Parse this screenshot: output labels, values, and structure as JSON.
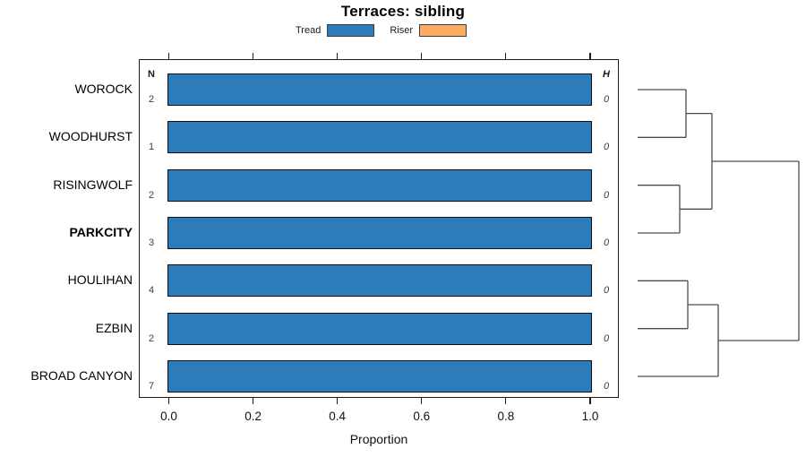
{
  "title": "Terraces: sibling",
  "legend": {
    "items": [
      {
        "label": "Tread",
        "color": "#2c7cb9"
      },
      {
        "label": "Riser",
        "color": "#fcab63"
      }
    ]
  },
  "table": {
    "n_header": "N",
    "h_header": "H"
  },
  "rows": [
    {
      "label": "WOROCK",
      "n": "2",
      "h": "0",
      "tread": 1.0,
      "riser": 0,
      "bold": false
    },
    {
      "label": "WOODHURST",
      "n": "1",
      "h": "0",
      "tread": 1.0,
      "riser": 0,
      "bold": false
    },
    {
      "label": "RISINGWOLF",
      "n": "2",
      "h": "0",
      "tread": 1.0,
      "riser": 0,
      "bold": false
    },
    {
      "label": "PARKCITY",
      "n": "3",
      "h": "0",
      "tread": 1.0,
      "riser": 0,
      "bold": true
    },
    {
      "label": "HOULIHAN",
      "n": "4",
      "h": "0",
      "tread": 1.0,
      "riser": 0,
      "bold": false
    },
    {
      "label": "EZBIN",
      "n": "2",
      "h": "0",
      "tread": 1.0,
      "riser": 0,
      "bold": false
    },
    {
      "label": "BROAD CANYON",
      "n": "7",
      "h": "0",
      "tread": 1.0,
      "riser": 0,
      "bold": false
    }
  ],
  "axis": {
    "label": "Proportion",
    "tick_labels": [
      "0.0",
      "0.2",
      "0.4",
      "0.6",
      "0.8",
      "1.0"
    ],
    "tick_values": [
      0,
      0.2,
      0.4,
      0.6,
      0.8,
      1.0
    ],
    "min": 0,
    "max": 1
  },
  "dendrogram": {
    "description": "hierarchical clustering tree, leaves aligned to bar rows top-to-bottom",
    "merges": [
      {
        "join": [
          "WOROCK",
          "WOODHURST"
        ]
      },
      {
        "join": [
          "RISINGWOLF",
          "PARKCITY"
        ]
      },
      {
        "join": [
          "WOROCK+WOODHURST",
          "RISINGWOLF+PARKCITY"
        ]
      },
      {
        "join": [
          "HOULIHAN",
          "EZBIN"
        ]
      },
      {
        "join": [
          "HOULIHAN+EZBIN",
          "BROAD CANYON"
        ]
      },
      {
        "join": [
          "top-cluster",
          "bottom-cluster"
        ]
      }
    ],
    "segments": [
      [
        712,
        100.0,
        766,
        100.0
      ],
      [
        712,
        153.3,
        766,
        153.3
      ],
      [
        766,
        100.0,
        766,
        153.3
      ],
      [
        766,
        126.6,
        795,
        126.6
      ],
      [
        712,
        206.7,
        759,
        206.7
      ],
      [
        712,
        260.0,
        759,
        260.0
      ],
      [
        759,
        206.7,
        759,
        260.0
      ],
      [
        759,
        233.3,
        795,
        233.3
      ],
      [
        795,
        126.6,
        795,
        233.3
      ],
      [
        795,
        180.0,
        892,
        180.0
      ],
      [
        712,
        313.3,
        768,
        313.3
      ],
      [
        712,
        366.7,
        768,
        366.7
      ],
      [
        768,
        313.3,
        768,
        366.7
      ],
      [
        768,
        340.0,
        802,
        340.0
      ],
      [
        712,
        420.0,
        802,
        420.0
      ],
      [
        802,
        340.0,
        802,
        420.0
      ],
      [
        802,
        380.0,
        892,
        380.0
      ],
      [
        892,
        180.0,
        892,
        380.0
      ]
    ]
  },
  "chart_data": {
    "type": "bar",
    "orientation": "horizontal",
    "title": "Terraces: sibling",
    "categories": [
      "WOROCK",
      "WOODHURST",
      "RISINGWOLF",
      "PARKCITY",
      "HOULIHAN",
      "EZBIN",
      "BROAD CANYON"
    ],
    "series": [
      {
        "name": "Tread",
        "color": "#2c7cb9",
        "values": [
          1.0,
          1.0,
          1.0,
          1.0,
          1.0,
          1.0,
          1.0
        ]
      },
      {
        "name": "Riser",
        "color": "#fcab63",
        "values": [
          0,
          0,
          0,
          0,
          0,
          0,
          0
        ]
      }
    ],
    "n_counts": [
      2,
      1,
      2,
      3,
      4,
      2,
      7
    ],
    "h_values": [
      0,
      0,
      0,
      0,
      0,
      0,
      0
    ],
    "xlabel": "Proportion",
    "ylabel": "",
    "xlim": [
      0,
      1
    ],
    "xticks": [
      0,
      0.2,
      0.4,
      0.6,
      0.8,
      1.0
    ],
    "legend_position": "top",
    "grid": false,
    "bold_category": "PARKCITY",
    "right_annex": "dendrogram"
  }
}
